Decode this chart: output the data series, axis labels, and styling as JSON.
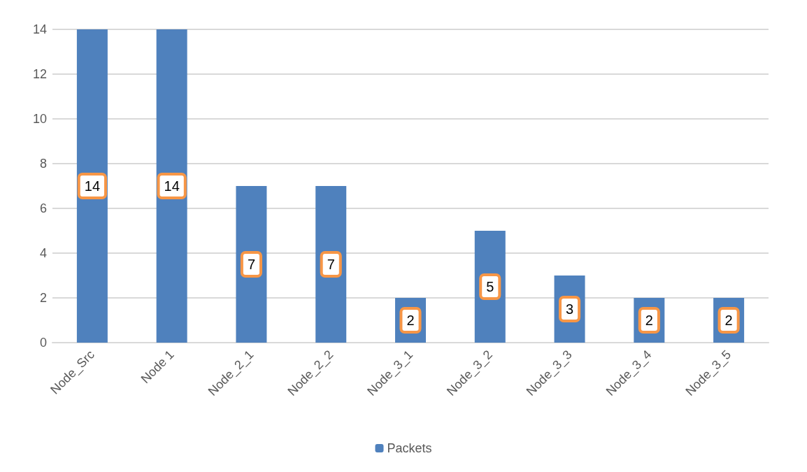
{
  "chart_data": {
    "type": "bar",
    "categories": [
      "Node_Src",
      "Node 1",
      "Node_2_1",
      "Node_2_2",
      "Node_3_1",
      "Node_3_2",
      "Node_3_3",
      "Node_3_4",
      "Node_3_5"
    ],
    "series": [
      {
        "name": "Packets",
        "color": "#4f81bd",
        "values": [
          14,
          14,
          7,
          7,
          2,
          5,
          3,
          2,
          2
        ]
      }
    ],
    "ylim": [
      0,
      14
    ],
    "yticks": [
      0,
      2,
      4,
      6,
      8,
      10,
      12,
      14
    ],
    "grid": "y",
    "legend": "bottom",
    "data_labels": true
  }
}
